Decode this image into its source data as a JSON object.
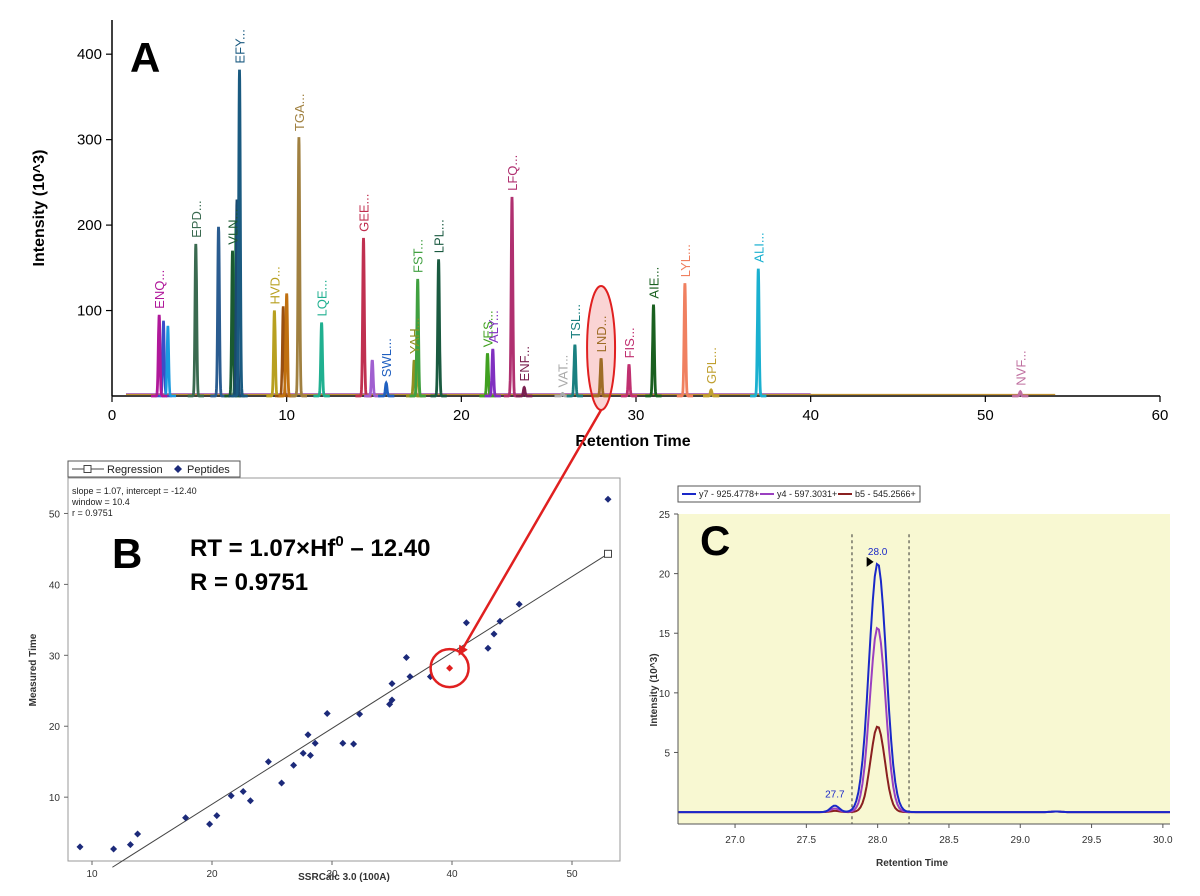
{
  "colors": {
    "highlight": "#e02020",
    "panelC_bg": "#f8f8d2",
    "pointB": "#1c2a7a"
  },
  "chart_data": [
    {
      "id": "A",
      "type": "line",
      "panel_label": "A",
      "xlabel": "Retention Time",
      "ylabel": "Intensity (10^3)",
      "xlim": [
        0,
        60
      ],
      "ylim": [
        0,
        440
      ],
      "xticks": [
        0,
        10,
        20,
        30,
        40,
        50,
        60
      ],
      "yticks": [
        100,
        200,
        300,
        400
      ],
      "peaks": [
        {
          "label": "ENQ...",
          "x": 2.7,
          "height": 95,
          "color": "#b0189a",
          "sub": [
            {
              "dx": 0.25,
              "h": 88,
              "c": "#3a4ec8"
            },
            {
              "dx": 0.5,
              "h": 82,
              "c": "#1a9adf"
            }
          ]
        },
        {
          "label": "EPD...",
          "x": 4.8,
          "height": 178,
          "color": "#3a6a50"
        },
        {
          "label": "",
          "x": 6.1,
          "height": 198,
          "color": "#2a5c90"
        },
        {
          "label": "VLN...",
          "x": 6.9,
          "height": 170,
          "color": "#1a5a30",
          "sub": [
            {
              "dx": 0.2,
              "h": 205,
              "c": "#2a8a50"
            }
          ]
        },
        {
          "label": "EFY...",
          "x": 7.3,
          "height": 382,
          "color": "#1a5a80",
          "sub": [
            {
              "dx": -0.15,
              "h": 230,
              "c": "#1a4a70"
            }
          ]
        },
        {
          "label": "HVD...",
          "x": 9.3,
          "height": 100,
          "color": "#b8a020"
        },
        {
          "label": "",
          "x": 10.0,
          "height": 120,
          "color": "#c07010",
          "sub": [
            {
              "dx": -0.2,
              "h": 105,
              "c": "#9a5010"
            }
          ]
        },
        {
          "label": "TGA...",
          "x": 10.7,
          "height": 303,
          "color": "#a08040"
        },
        {
          "label": "LQE...",
          "x": 12.0,
          "height": 86,
          "color": "#20b090"
        },
        {
          "label": "GEE...",
          "x": 14.4,
          "height": 185,
          "color": "#c03050"
        },
        {
          "label": "",
          "x": 14.9,
          "height": 42,
          "color": "#a060d0"
        },
        {
          "label": "SWL...",
          "x": 15.7,
          "height": 15,
          "color": "#2060c0"
        },
        {
          "label": "YAH...",
          "x": 17.3,
          "height": 42,
          "color": "#909020",
          "sub": [
            {
              "dx": 0.2,
              "h": 40,
              "c": "#c0a020"
            }
          ]
        },
        {
          "label": "FST...",
          "x": 17.5,
          "height": 137,
          "color": "#40a040"
        },
        {
          "label": "LPL...",
          "x": 18.7,
          "height": 160,
          "color": "#1a5a40"
        },
        {
          "label": "VES...",
          "x": 21.5,
          "height": 50,
          "color": "#40a020"
        },
        {
          "label": "ALY...",
          "x": 21.8,
          "height": 55,
          "color": "#8030c0"
        },
        {
          "label": "LFQ...",
          "x": 22.9,
          "height": 233,
          "color": "#b03070"
        },
        {
          "label": "ENF...",
          "x": 23.6,
          "height": 10,
          "color": "#7a2050"
        },
        {
          "label": "VAT...",
          "x": 25.8,
          "height": 3,
          "color": "#aaaaaa"
        },
        {
          "label": "TSL...",
          "x": 26.5,
          "height": 60,
          "color": "#1a8080"
        },
        {
          "label": "LND...",
          "x": 28.0,
          "height": 44,
          "color": "#8a7a20"
        },
        {
          "label": "FIS...",
          "x": 29.6,
          "height": 37,
          "color": "#c03070"
        },
        {
          "label": "AIE...",
          "x": 31.0,
          "height": 107,
          "color": "#1a6020"
        },
        {
          "label": "LYL...",
          "x": 32.8,
          "height": 132,
          "color": "#f08060"
        },
        {
          "label": "GPL...",
          "x": 34.3,
          "height": 7,
          "color": "#c0a030"
        },
        {
          "label": "ALI...",
          "x": 37.0,
          "height": 149,
          "color": "#1ab0d0"
        },
        {
          "label": "NVF...",
          "x": 52.0,
          "height": 5,
          "color": "#c070a0"
        }
      ]
    },
    {
      "id": "B",
      "type": "scatter",
      "panel_label": "B",
      "xlabel": "SSRCalc 3.0 (100A)",
      "ylabel": "Measured Time",
      "xlim": [
        8,
        54
      ],
      "ylim": [
        1,
        55
      ],
      "xticks": [
        10,
        20,
        30,
        40,
        50
      ],
      "yticks": [
        10,
        20,
        30,
        40,
        50
      ],
      "legend": {
        "regression": "Regression",
        "peptides": "Peptides"
      },
      "stats": [
        "slope = 1.07, intercept = -12.40",
        "window = 10.4",
        "r = 0.9751"
      ],
      "equation_line1": "RT = 1.07×Hf",
      "equation_sup": "0",
      "equation_line1_tail": " – 12.40",
      "equation_line2": "R = 0.9751",
      "regression": {
        "slope": 1.07,
        "intercept": -12.4,
        "x_range": [
          11.7,
          53
        ]
      },
      "highlight": {
        "x": 39.8,
        "y": 28.2
      },
      "points": [
        [
          9,
          3
        ],
        [
          11.8,
          2.7
        ],
        [
          13.2,
          3.3
        ],
        [
          13.8,
          4.8
        ],
        [
          17.8,
          7.1
        ],
        [
          19.8,
          6.2
        ],
        [
          20.4,
          7.4
        ],
        [
          21.6,
          10.2
        ],
        [
          22.6,
          10.8
        ],
        [
          23.2,
          9.5
        ],
        [
          24.7,
          15.0
        ],
        [
          25.8,
          12.0
        ],
        [
          26.8,
          14.5
        ],
        [
          27.6,
          16.2
        ],
        [
          28.0,
          18.8
        ],
        [
          28.2,
          15.9
        ],
        [
          28.6,
          17.6
        ],
        [
          29.6,
          21.8
        ],
        [
          30.9,
          17.6
        ],
        [
          31.8,
          17.5
        ],
        [
          32.3,
          21.7
        ],
        [
          34.8,
          23.1
        ],
        [
          35.0,
          23.7
        ],
        [
          35.0,
          26.0
        ],
        [
          36.2,
          29.7
        ],
        [
          36.5,
          27.0
        ],
        [
          38.2,
          27.0
        ],
        [
          41.2,
          34.6
        ],
        [
          43.0,
          31.0
        ],
        [
          43.5,
          33.0
        ],
        [
          44.0,
          34.8
        ],
        [
          45.6,
          37.2
        ],
        [
          53.0,
          52.0
        ]
      ]
    },
    {
      "id": "C",
      "type": "line",
      "panel_label": "C",
      "xlabel": "Retention Time",
      "ylabel": "Intensity (10^3)",
      "xlim": [
        26.6,
        30.05
      ],
      "ylim": [
        -1,
        25
      ],
      "xticks": [
        "27.0",
        "27.5",
        "28.0",
        "28.5",
        "29.0",
        "29.5",
        "30.0"
      ],
      "yticks": [
        "5",
        "10",
        "15",
        "20",
        "25"
      ],
      "peak_labels": [
        "28.0",
        "27.7"
      ],
      "boundaries": [
        27.82,
        28.22
      ],
      "series": [
        {
          "name": "y7 - 925.4778+",
          "color": "#1a28c8",
          "peak_x": 28.0,
          "peak_y": 20.9,
          "width": 0.06,
          "minor_x": 27.7,
          "minor_y": 0.55
        },
        {
          "name": "y4 - 597.3031+",
          "color": "#9a40c0",
          "peak_x": 28.0,
          "peak_y": 15.5,
          "width": 0.055,
          "minor_x": 27.7,
          "minor_y": 0.3
        },
        {
          "name": "b5 - 545.2566+",
          "color": "#8a2020",
          "peak_x": 28.0,
          "peak_y": 7.2,
          "width": 0.05,
          "minor_x": 27.7,
          "minor_y": 0.1
        }
      ]
    }
  ]
}
